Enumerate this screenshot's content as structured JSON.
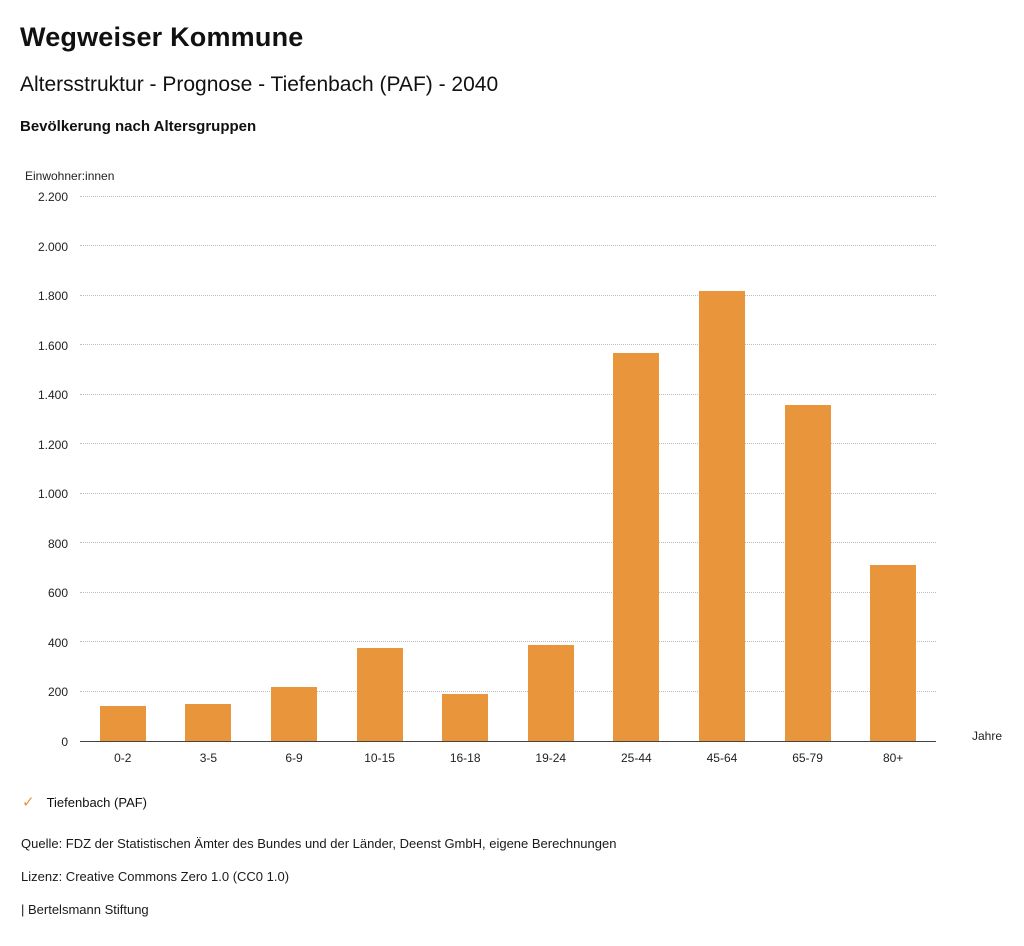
{
  "header": {
    "brand": "Wegweiser Kommune",
    "title": "Altersstruktur - Prognose - Tiefenbach (PAF) - 2040",
    "subtitle": "Bevölkerung nach Altersgruppen"
  },
  "chart_data": {
    "type": "bar",
    "title": "Bevölkerung nach Altersgruppen",
    "ylabel": "Einwohner:innen",
    "xlabel": "Jahre",
    "categories": [
      "0-2",
      "3-5",
      "6-9",
      "10-15",
      "16-18",
      "19-24",
      "25-44",
      "45-64",
      "65-79",
      "80+"
    ],
    "values": [
      140,
      150,
      220,
      375,
      190,
      390,
      1570,
      1820,
      1360,
      710
    ],
    "series_name": "Tiefenbach (PAF)",
    "ylim": [
      0,
      2200
    ],
    "yticks": [
      0,
      200,
      400,
      600,
      800,
      1000,
      1200,
      1400,
      1600,
      1800,
      2000,
      2200
    ],
    "ytick_labels": [
      "0",
      "200",
      "400",
      "600",
      "800",
      "1.000",
      "1.200",
      "1.400",
      "1.600",
      "1.800",
      "2.000",
      "2.200"
    ],
    "grid": "horizontal-dotted",
    "legend_position": "bottom-left",
    "bar_color": "#E8953C"
  },
  "legend": {
    "check_icon": "✓",
    "label": "Tiefenbach (PAF)"
  },
  "footer": {
    "source": "Quelle: FDZ der Statistischen Ämter des Bundes und der Länder, Deenst GmbH, eigene Berechnungen",
    "license": "Lizenz: Creative Commons Zero 1.0 (CC0 1.0)",
    "attribution": "| Bertelsmann Stiftung"
  },
  "colors": {
    "accent": "#E8953C",
    "gridline": "#bdbdbd",
    "axis": "#444444"
  }
}
